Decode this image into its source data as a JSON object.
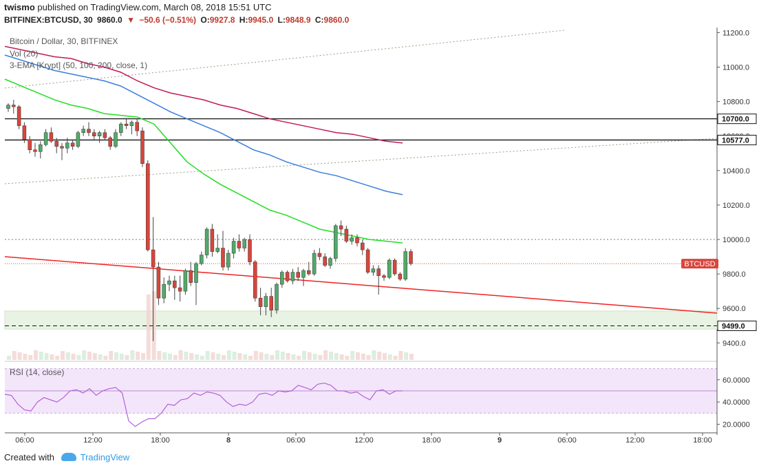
{
  "header": {
    "user": "twismo",
    "published_text": "published on TradingView.com, March 08, 2018 15:51 UTC",
    "symbol": "BITFINEX:BTCUSD, 30",
    "last": "9860.0",
    "change": "−50.6 (−0.51%)",
    "o_label": "O:",
    "o_val": "9927.8",
    "h_label": "H:",
    "h_val": "9945.0",
    "l_label": "L:",
    "l_val": "9848.9",
    "c_label": "C:",
    "c_val": "9860.0"
  },
  "legend": {
    "title": "Bitcoin / Dollar, 30, BITFINEX",
    "vol": "Vol (20)",
    "ema": "3-EMA [Krypt] (50, 100, 200, close, 1)",
    "rsi": "RSI (14, close)"
  },
  "footer": {
    "created_with": "Created with",
    "brand": "TradingView"
  },
  "colors": {
    "up": "#53a96a",
    "down": "#d7463c",
    "ema50": "#22dd22",
    "ema100": "#3b7ddd",
    "ema200": "#c2185b",
    "rsi": "#b45fd6",
    "trend": "#ee2222"
  },
  "chart_data": {
    "type": "candlestick",
    "price_axis": {
      "ticks": [
        9400,
        9600,
        9800,
        10000,
        10200,
        10400,
        10600,
        10800,
        11000,
        11200
      ],
      "tick_labels": [
        "9400.0",
        "9600.0",
        "9800.0",
        "10000.0",
        "10200.0",
        "10400.0",
        "10600.0",
        "10800.0",
        "11000.0",
        "11200.0"
      ]
    },
    "time_axis": {
      "labels": [
        "06:00",
        "12:00",
        "18:00",
        "8",
        "06:00",
        "12:00",
        "18:00",
        "9",
        "06:00",
        "12:00",
        "18:00"
      ]
    },
    "levels": [
      {
        "price": 10700.0,
        "label": "10700.0",
        "style": "solid"
      },
      {
        "price": 10577.0,
        "label": "10577.0",
        "style": "solid"
      },
      {
        "price": 9499.0,
        "label": "9499.0",
        "style": "dashed"
      },
      {
        "price": 10000.0,
        "style": "dotted"
      }
    ],
    "last_price": {
      "price": 9860.0,
      "label": "BTCUSD"
    },
    "support_zone": [
      9480,
      9585
    ],
    "rsi_axis": {
      "ticks": [
        20,
        40,
        60
      ],
      "tick_labels": [
        "20.0000",
        "40.0000",
        "60.0000"
      ],
      "bands": [
        30,
        70
      ],
      "level": 50
    },
    "candles": [
      [
        10760,
        10790,
        10740,
        10780
      ],
      [
        10780,
        10810,
        10730,
        10770
      ],
      [
        10770,
        10780,
        10640,
        10660
      ],
      [
        10660,
        10680,
        10560,
        10580
      ],
      [
        10580,
        10600,
        10500,
        10520
      ],
      [
        10520,
        10560,
        10480,
        10510
      ],
      [
        10510,
        10570,
        10470,
        10550
      ],
      [
        10550,
        10640,
        10540,
        10620
      ],
      [
        10620,
        10650,
        10560,
        10570
      ],
      [
        10570,
        10590,
        10500,
        10540
      ],
      [
        10540,
        10560,
        10460,
        10530
      ],
      [
        10530,
        10590,
        10500,
        10560
      ],
      [
        10560,
        10580,
        10520,
        10540
      ],
      [
        10540,
        10630,
        10530,
        10620
      ],
      [
        10620,
        10660,
        10600,
        10640
      ],
      [
        10640,
        10680,
        10600,
        10620
      ],
      [
        10620,
        10640,
        10580,
        10600
      ],
      [
        10600,
        10630,
        10560,
        10620
      ],
      [
        10620,
        10640,
        10580,
        10590
      ],
      [
        10590,
        10600,
        10520,
        10540
      ],
      [
        10540,
        10640,
        10530,
        10620
      ],
      [
        10620,
        10680,
        10600,
        10670
      ],
      [
        10670,
        10700,
        10640,
        10660
      ],
      [
        10660,
        10690,
        10610,
        10680
      ],
      [
        10680,
        10700,
        10600,
        10630
      ],
      [
        10630,
        10650,
        10420,
        10440
      ],
      [
        10440,
        10460,
        9930,
        9940
      ],
      [
        9940,
        10130,
        9410,
        9840
      ],
      [
        9840,
        9870,
        9620,
        9660
      ],
      [
        9660,
        9780,
        9630,
        9740
      ],
      [
        9740,
        9790,
        9700,
        9760
      ],
      [
        9760,
        9790,
        9650,
        9720
      ],
      [
        9720,
        9790,
        9640,
        9700
      ],
      [
        9700,
        9830,
        9680,
        9820
      ],
      [
        9820,
        9870,
        9730,
        9750
      ],
      [
        9750,
        9870,
        9620,
        9860
      ],
      [
        9860,
        9930,
        9850,
        9910
      ],
      [
        9910,
        10070,
        9890,
        10060
      ],
      [
        10060,
        10090,
        9900,
        9930
      ],
      [
        9930,
        10030,
        9920,
        9950
      ],
      [
        9950,
        10050,
        9820,
        9840
      ],
      [
        9840,
        9940,
        9820,
        9920
      ],
      [
        9920,
        10010,
        9890,
        9990
      ],
      [
        9990,
        10030,
        9930,
        9950
      ],
      [
        9950,
        10010,
        9930,
        10000
      ],
      [
        10000,
        10030,
        9850,
        9870
      ],
      [
        9870,
        9880,
        9640,
        9660
      ],
      [
        9660,
        9720,
        9560,
        9610
      ],
      [
        9610,
        9690,
        9560,
        9670
      ],
      [
        9670,
        9720,
        9550,
        9590
      ],
      [
        9590,
        9750,
        9570,
        9740
      ],
      [
        9740,
        9820,
        9720,
        9810
      ],
      [
        9810,
        9820,
        9750,
        9760
      ],
      [
        9760,
        9830,
        9740,
        9810
      ],
      [
        9810,
        9840,
        9760,
        9780
      ],
      [
        9780,
        9830,
        9730,
        9820
      ],
      [
        9820,
        9870,
        9790,
        9800
      ],
      [
        9800,
        9940,
        9790,
        9920
      ],
      [
        9920,
        9950,
        9880,
        9900
      ],
      [
        9900,
        9920,
        9840,
        9850
      ],
      [
        9850,
        9900,
        9830,
        9890
      ],
      [
        9890,
        10090,
        9870,
        10080
      ],
      [
        10080,
        10110,
        10020,
        10060
      ],
      [
        10060,
        10080,
        9980,
        9990
      ],
      [
        9990,
        10030,
        9970,
        10010
      ],
      [
        10010,
        10030,
        9960,
        9980
      ],
      [
        9980,
        10000,
        9910,
        9940
      ],
      [
        9940,
        9950,
        9800,
        9810
      ],
      [
        9810,
        9850,
        9790,
        9830
      ],
      [
        9830,
        9850,
        9680,
        9790
      ],
      [
        9790,
        9800,
        9760,
        9780
      ],
      [
        9780,
        9890,
        9770,
        9880
      ],
      [
        9880,
        9890,
        9790,
        9800
      ],
      [
        9800,
        9810,
        9760,
        9770
      ],
      [
        9770,
        9950,
        9760,
        9930
      ],
      [
        9930,
        9945,
        9848.9,
        9860
      ]
    ],
    "ema50": [
      10930,
      10890,
      10850,
      10810,
      10780,
      10760,
      10730,
      10720,
      10710,
      10670,
      10560,
      10450,
      10380,
      10320,
      10270,
      10220,
      10170,
      10140,
      10100,
      10060,
      10040,
      10020,
      10000,
      9990,
      9980
    ],
    "ema100": [
      11070,
      11040,
      11010,
      10980,
      10960,
      10940,
      10920,
      10890,
      10840,
      10790,
      10740,
      10700,
      10660,
      10620,
      10570,
      10520,
      10490,
      10450,
      10420,
      10390,
      10370,
      10340,
      10310,
      10280,
      10260
    ],
    "ema200": [
      11120,
      11100,
      11080,
      11060,
      11050,
      11020,
      11000,
      10970,
      10920,
      10880,
      10850,
      10830,
      10810,
      10780,
      10760,
      10730,
      10700,
      10680,
      10660,
      10640,
      10620,
      10610,
      10590,
      10570,
      10560
    ],
    "rsi": [
      47,
      46,
      38,
      33,
      32,
      40,
      44,
      42,
      40,
      44,
      50,
      51,
      48,
      52,
      46,
      50,
      52,
      53,
      48,
      23,
      18,
      22,
      25,
      25,
      30,
      38,
      37,
      42,
      43,
      48,
      46,
      49,
      48,
      46,
      40,
      36,
      38,
      37,
      40,
      47,
      48,
      46,
      50,
      49,
      50,
      55,
      53,
      51,
      56,
      57,
      55,
      50,
      50,
      48,
      49,
      45,
      42,
      50,
      51,
      47,
      50,
      50
    ]
  }
}
